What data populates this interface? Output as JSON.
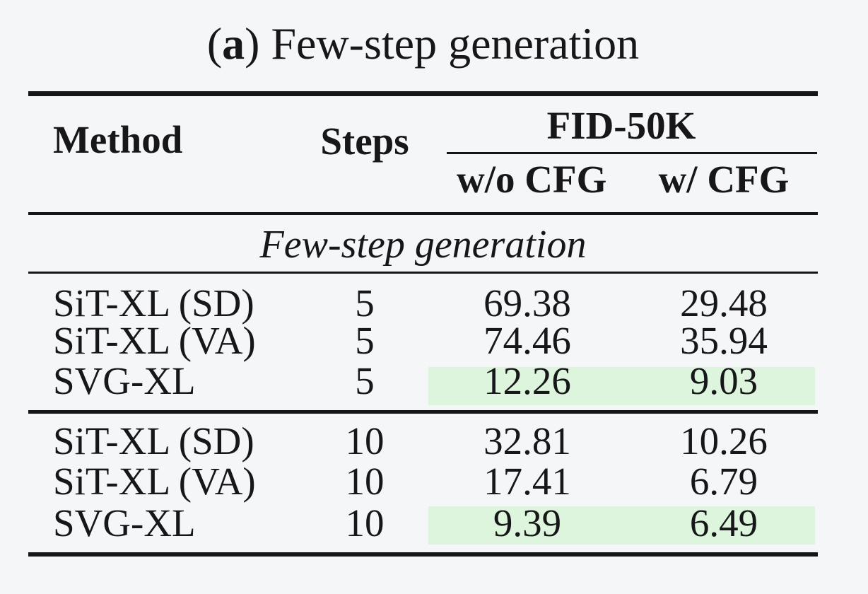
{
  "caption": {
    "open": "(",
    "letter": "a",
    "close": ")",
    "title": " Few-step generation"
  },
  "header": {
    "method": "Method",
    "steps": "Steps",
    "fid_group": "FID-50K",
    "wo_cfg": "w/o CFG",
    "w_cfg": "w/ CFG"
  },
  "section": "Few-step generation",
  "groups": [
    {
      "rows": [
        {
          "method": "SiT-XL (SD)",
          "steps": "5",
          "wo_cfg": "69.38",
          "w_cfg": "29.48",
          "highlight": false
        },
        {
          "method": "SiT-XL (VA)",
          "steps": "5",
          "wo_cfg": "74.46",
          "w_cfg": "35.94",
          "highlight": false
        },
        {
          "method": "SVG-XL",
          "steps": "5",
          "wo_cfg": "12.26",
          "w_cfg": "9.03",
          "highlight": true
        }
      ]
    },
    {
      "rows": [
        {
          "method": "SiT-XL (SD)",
          "steps": "10",
          "wo_cfg": "32.81",
          "w_cfg": "10.26",
          "highlight": false
        },
        {
          "method": "SiT-XL (VA)",
          "steps": "10",
          "wo_cfg": "17.41",
          "w_cfg": "6.79",
          "highlight": false
        },
        {
          "method": "SVG-XL",
          "steps": "10",
          "wo_cfg": "9.39",
          "w_cfg": "6.49",
          "highlight": true
        }
      ]
    }
  ],
  "colors": {
    "hl": "#dcf5dc",
    "rule": "#15151a",
    "text": "#17171a",
    "bg": "#f5f6f8"
  },
  "chart_data": {
    "type": "table",
    "title": "(a) Few-step generation",
    "section": "Few-step generation",
    "columns": [
      "Method",
      "Steps",
      "FID-50K w/o CFG",
      "FID-50K w/ CFG"
    ],
    "rows": [
      [
        "SiT-XL (SD)",
        5,
        69.38,
        29.48
      ],
      [
        "SiT-XL (VA)",
        5,
        74.46,
        35.94
      ],
      [
        "SVG-XL",
        5,
        12.26,
        9.03
      ],
      [
        "SiT-XL (SD)",
        10,
        32.81,
        10.26
      ],
      [
        "SiT-XL (VA)",
        10,
        17.41,
        6.79
      ],
      [
        "SVG-XL",
        10,
        9.39,
        6.49
      ]
    ],
    "highlighted_rows": [
      2,
      5
    ],
    "highlight_meaning": "best results (SVG-XL) shaded green in FID columns"
  }
}
